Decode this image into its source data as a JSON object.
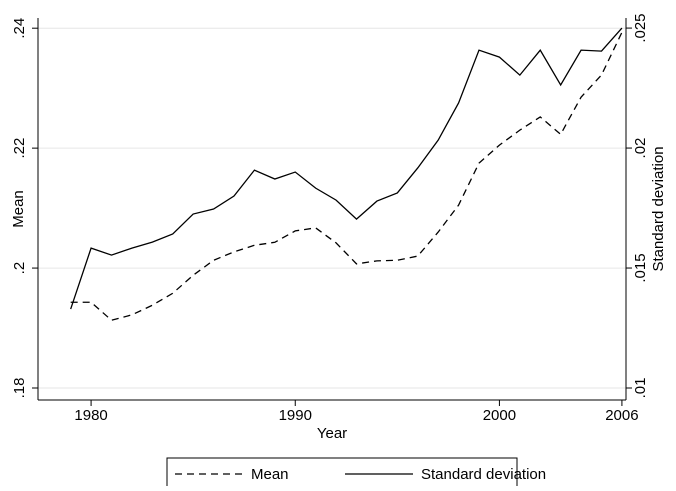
{
  "chart_data": {
    "type": "line",
    "x": [
      1979,
      1980,
      1981,
      1982,
      1983,
      1984,
      1985,
      1986,
      1987,
      1988,
      1989,
      1990,
      1991,
      1992,
      1993,
      1994,
      1995,
      1996,
      1997,
      1998,
      1999,
      2000,
      2001,
      2002,
      2003,
      2004,
      2005,
      2006
    ],
    "series": [
      {
        "name": "Mean",
        "color": "#000000",
        "dash": "dashed",
        "axis": "y",
        "values": [
          0.1943,
          0.1943,
          0.1913,
          0.1922,
          0.1938,
          0.1958,
          0.1988,
          0.2013,
          0.2027,
          0.2038,
          0.2043,
          0.2062,
          0.2067,
          0.2042,
          0.2007,
          0.2012,
          0.2013,
          0.202,
          0.206,
          0.2105,
          0.2175,
          0.2205,
          0.223,
          0.2252,
          0.2223,
          0.2285,
          0.2322,
          0.2393
        ]
      },
      {
        "name": "Standard deviation",
        "color": "#000000",
        "dash": "solid",
        "axis": "y2",
        "values": [
          0.01329,
          0.01583,
          0.01554,
          0.01583,
          0.01608,
          0.01642,
          0.01725,
          0.01746,
          0.018,
          0.01908,
          0.01871,
          0.019,
          0.01833,
          0.01783,
          0.01704,
          0.01779,
          0.01813,
          0.01917,
          0.02033,
          0.02188,
          0.02408,
          0.02379,
          0.02304,
          0.02408,
          0.02263,
          0.02408,
          0.02404,
          0.025
        ]
      }
    ],
    "x_label": "Year",
    "y_label": "Mean",
    "y2_label": "Standard deviation",
    "xlim": [
      1977.4,
      2006.2
    ],
    "xticks": [
      1980,
      1990,
      2000,
      2006
    ],
    "ylim": [
      0.178,
      0.2417
    ],
    "yticks": [
      {
        "value": 0.18,
        "label": ".18"
      },
      {
        "value": 0.2,
        "label": ".2"
      },
      {
        "value": 0.22,
        "label": ".22"
      },
      {
        "value": 0.24,
        "label": ".24"
      }
    ],
    "y2lim": [
      0.0095,
      0.02542
    ],
    "y2ticks": [
      {
        "value": 0.01,
        "label": ".01"
      },
      {
        "value": 0.015,
        "label": ".015"
      },
      {
        "value": 0.02,
        "label": ".02"
      },
      {
        "value": 0.025,
        "label": ".025"
      }
    ],
    "grid": true,
    "legend": "bottom"
  }
}
